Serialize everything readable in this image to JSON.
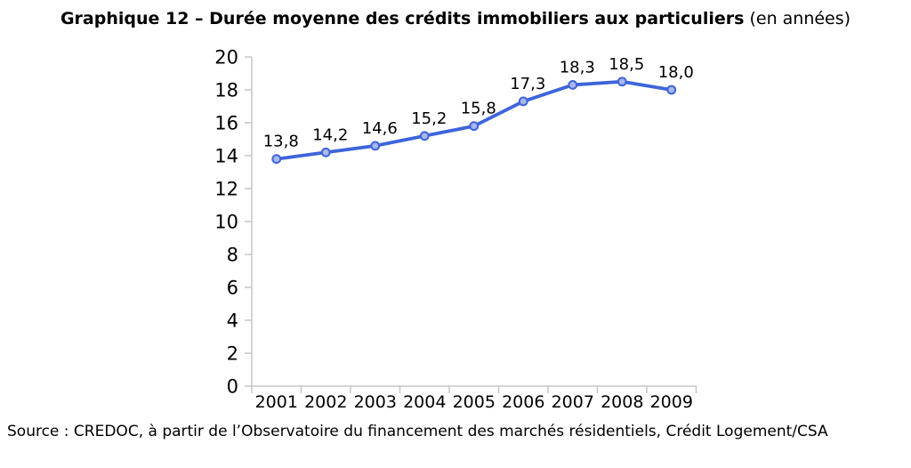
{
  "title": {
    "bold": "Graphique 12 – Durée moyenne des crédits immobiliers aux particuliers",
    "suffix": " (en années)"
  },
  "source": "Source : CREDOC, à partir de l’Observatoire du financement des marchés résidentiels, Crédit Logement/CSA",
  "colors": {
    "line": "#3D64DB",
    "marker_fill": "#A9B6EE",
    "axis": "#C6C6C6"
  },
  "chart_data": {
    "type": "line",
    "title": "Graphique 12 – Durée moyenne des crédits immobiliers aux particuliers (en années)",
    "categories": [
      "2001",
      "2002",
      "2003",
      "2004",
      "2005",
      "2006",
      "2007",
      "2008",
      "2009"
    ],
    "values": [
      13.8,
      14.2,
      14.6,
      15.2,
      15.8,
      17.3,
      18.3,
      18.5,
      18.0
    ],
    "point_labels": [
      "13,8",
      "14,2",
      "14,6",
      "15,2",
      "15,8",
      "17,3",
      "18,3",
      "18,5",
      "18,0"
    ],
    "xlabel": "",
    "ylabel": "",
    "ylim": [
      0,
      20
    ],
    "ytick_step": 2,
    "grid": false,
    "legend": "none"
  }
}
